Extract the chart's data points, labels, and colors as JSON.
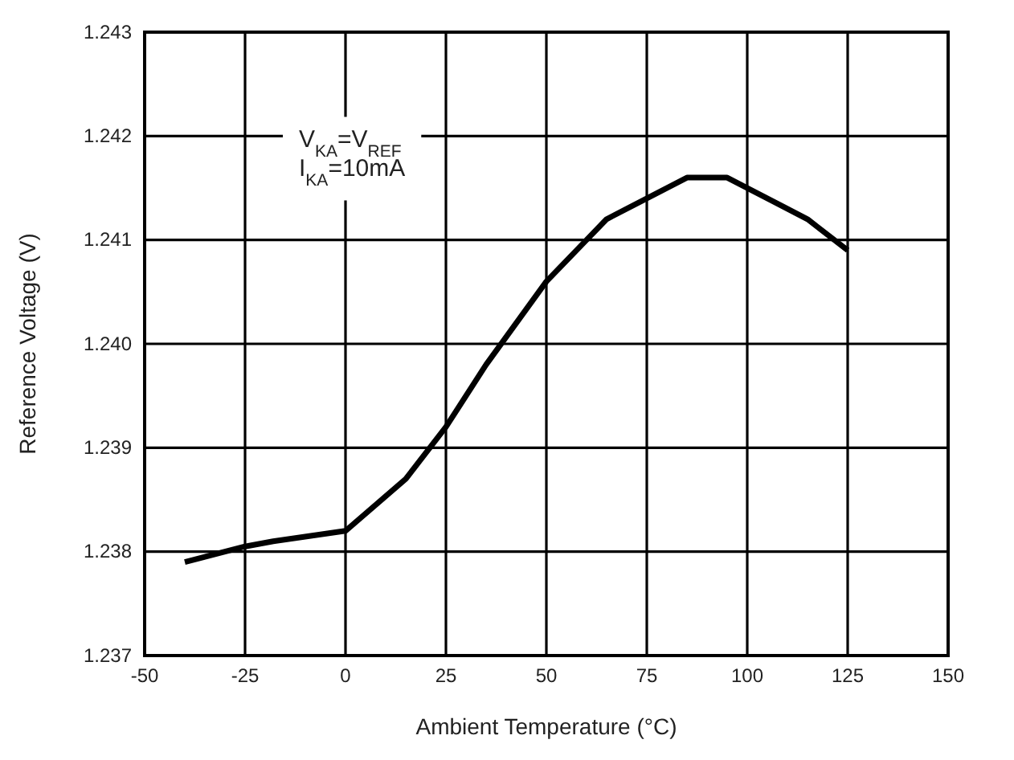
{
  "chart_data": {
    "type": "line",
    "xlabel": "Ambient Temperature (°C)",
    "ylabel": "Reference Voltage (V)",
    "annotations": [
      "V$_{KA}$=V$_{REF}$",
      "I$_{KA}$=10mA"
    ],
    "x": [
      -40,
      -25,
      -18,
      0,
      15,
      25,
      35,
      50,
      60,
      65,
      85,
      95,
      115,
      125
    ],
    "series": [
      {
        "color": "#000000",
        "values": [
          1.2379,
          1.23805,
          1.2381,
          1.2382,
          1.2387,
          1.2392,
          1.2398,
          1.2406,
          1.241,
          1.2412,
          1.2416,
          1.2416,
          1.2412,
          1.2409
        ]
      }
    ],
    "xlim": [
      -50,
      150
    ],
    "ylim": [
      1.237,
      1.243
    ],
    "xticks": [
      -50,
      -25,
      0,
      25,
      50,
      75,
      100,
      125,
      150
    ],
    "yticks": [
      {
        "value": 1.237,
        "label": "1.237"
      },
      {
        "value": 1.238,
        "label": "1.238"
      },
      {
        "value": 1.239,
        "label": "1.239"
      },
      {
        "value": 1.24,
        "label": "1.240"
      },
      {
        "value": 1.241,
        "label": "1.241"
      },
      {
        "value": 1.242,
        "label": "1.242"
      },
      {
        "value": 1.243,
        "label": "1.243"
      }
    ],
    "grid": true,
    "marker": "none",
    "line_style": "solid"
  }
}
